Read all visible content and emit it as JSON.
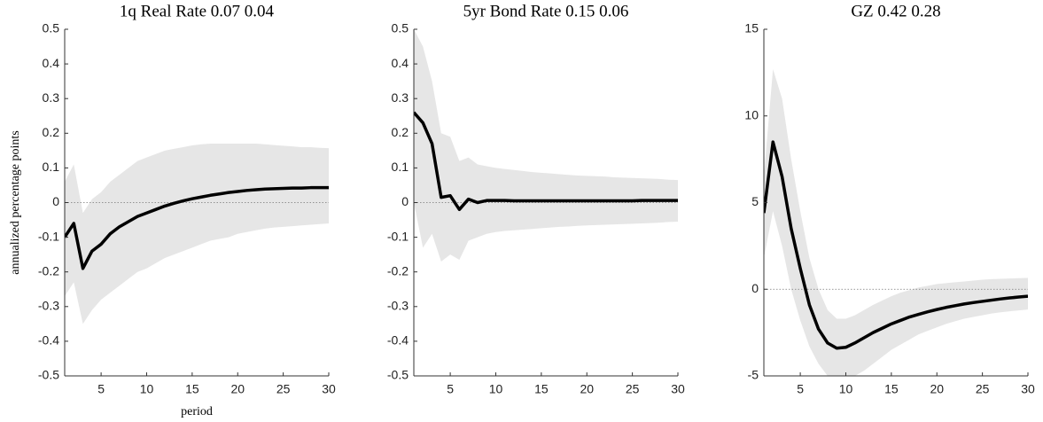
{
  "chart_data": [
    {
      "type": "line",
      "title": "1q Real Rate 0.07 0.04",
      "ylabel": "annualized percentage points",
      "xlabel": "period",
      "x": [
        1,
        2,
        3,
        4,
        5,
        6,
        7,
        8,
        9,
        10,
        11,
        12,
        13,
        14,
        15,
        16,
        17,
        18,
        19,
        20,
        21,
        22,
        23,
        24,
        25,
        26,
        27,
        28,
        29,
        30
      ],
      "values": [
        -0.1,
        -0.06,
        -0.19,
        -0.14,
        -0.12,
        -0.09,
        -0.07,
        -0.055,
        -0.04,
        -0.03,
        -0.02,
        -0.01,
        -0.002,
        0.005,
        0.011,
        0.016,
        0.021,
        0.025,
        0.029,
        0.032,
        0.035,
        0.037,
        0.039,
        0.04,
        0.041,
        0.042,
        0.042,
        0.043,
        0.043,
        0.043
      ],
      "upper": [
        0.06,
        0.11,
        -0.03,
        0.01,
        0.03,
        0.06,
        0.08,
        0.1,
        0.12,
        0.13,
        0.14,
        0.15,
        0.155,
        0.16,
        0.165,
        0.168,
        0.17,
        0.17,
        0.17,
        0.17,
        0.17,
        0.17,
        0.168,
        0.166,
        0.164,
        0.162,
        0.16,
        0.16,
        0.158,
        0.157
      ],
      "lower": [
        -0.27,
        -0.23,
        -0.35,
        -0.31,
        -0.28,
        -0.26,
        -0.24,
        -0.22,
        -0.2,
        -0.19,
        -0.175,
        -0.16,
        -0.15,
        -0.14,
        -0.13,
        -0.12,
        -0.11,
        -0.105,
        -0.1,
        -0.09,
        -0.085,
        -0.08,
        -0.075,
        -0.072,
        -0.07,
        -0.068,
        -0.066,
        -0.064,
        -0.062,
        -0.06
      ],
      "color": "#000000",
      "band_color": "#e6e6e6",
      "hline": 0,
      "xlim": [
        1,
        30
      ],
      "ylim": [
        -0.5,
        0.5
      ],
      "xticks": [
        5,
        10,
        15,
        20,
        25,
        30
      ],
      "yticks": [
        -0.5,
        -0.4,
        -0.3,
        -0.2,
        -0.1,
        0,
        0.1,
        0.2,
        0.3,
        0.4,
        0.5
      ]
    },
    {
      "type": "line",
      "title": "5yr Bond Rate 0.15 0.06",
      "x": [
        1,
        2,
        3,
        4,
        5,
        6,
        7,
        8,
        9,
        10,
        11,
        12,
        13,
        14,
        15,
        16,
        17,
        18,
        19,
        20,
        21,
        22,
        23,
        24,
        25,
        26,
        27,
        28,
        29,
        30
      ],
      "values": [
        0.26,
        0.23,
        0.17,
        0.015,
        0.02,
        -0.02,
        0.01,
        0.0,
        0.006,
        0.006,
        0.006,
        0.005,
        0.005,
        0.005,
        0.005,
        0.005,
        0.005,
        0.005,
        0.005,
        0.005,
        0.005,
        0.005,
        0.005,
        0.005,
        0.005,
        0.006,
        0.006,
        0.006,
        0.006,
        0.006
      ],
      "upper": [
        0.5,
        0.45,
        0.35,
        0.2,
        0.19,
        0.12,
        0.13,
        0.11,
        0.105,
        0.1,
        0.097,
        0.094,
        0.091,
        0.088,
        0.086,
        0.084,
        0.082,
        0.08,
        0.078,
        0.077,
        0.076,
        0.075,
        0.073,
        0.072,
        0.071,
        0.07,
        0.069,
        0.068,
        0.066,
        0.065
      ],
      "lower": [
        0.0,
        -0.13,
        -0.09,
        -0.17,
        -0.15,
        -0.165,
        -0.11,
        -0.1,
        -0.09,
        -0.085,
        -0.082,
        -0.08,
        -0.078,
        -0.076,
        -0.074,
        -0.072,
        -0.07,
        -0.069,
        -0.067,
        -0.066,
        -0.065,
        -0.064,
        -0.063,
        -0.062,
        -0.061,
        -0.06,
        -0.059,
        -0.058,
        -0.056,
        -0.055
      ],
      "color": "#000000",
      "band_color": "#e6e6e6",
      "hline": 0,
      "xlim": [
        1,
        30
      ],
      "ylim": [
        -0.5,
        0.5
      ],
      "xticks": [
        5,
        10,
        15,
        20,
        25,
        30
      ],
      "yticks": [
        -0.5,
        -0.4,
        -0.3,
        -0.2,
        -0.1,
        0,
        0.1,
        0.2,
        0.3,
        0.4,
        0.5
      ]
    },
    {
      "type": "line",
      "title": "GZ 0.42 0.28",
      "x": [
        1,
        2,
        3,
        4,
        5,
        6,
        7,
        8,
        9,
        10,
        11,
        12,
        13,
        14,
        15,
        16,
        17,
        18,
        19,
        20,
        21,
        22,
        23,
        24,
        25,
        26,
        27,
        28,
        29,
        30
      ],
      "values": [
        4.4,
        8.5,
        6.5,
        3.5,
        1.2,
        -0.9,
        -2.3,
        -3.1,
        -3.4,
        -3.35,
        -3.1,
        -2.8,
        -2.5,
        -2.25,
        -2.0,
        -1.8,
        -1.6,
        -1.45,
        -1.3,
        -1.17,
        -1.05,
        -0.95,
        -0.85,
        -0.77,
        -0.7,
        -0.63,
        -0.56,
        -0.5,
        -0.45,
        -0.4
      ],
      "upper": [
        6.5,
        12.7,
        11,
        7.5,
        4.5,
        1.8,
        0,
        -1.2,
        -1.7,
        -1.7,
        -1.5,
        -1.2,
        -0.9,
        -0.65,
        -0.4,
        -0.2,
        -0.05,
        0.1,
        0.2,
        0.3,
        0.35,
        0.4,
        0.45,
        0.5,
        0.55,
        0.58,
        0.6,
        0.62,
        0.64,
        0.65
      ],
      "lower": [
        1.8,
        4.5,
        2.5,
        0,
        -1.8,
        -3.3,
        -4.3,
        -5,
        -5.3,
        -5.2,
        -5,
        -4.7,
        -4.3,
        -3.9,
        -3.5,
        -3.2,
        -2.9,
        -2.6,
        -2.4,
        -2.2,
        -2.0,
        -1.85,
        -1.7,
        -1.6,
        -1.5,
        -1.4,
        -1.33,
        -1.27,
        -1.22,
        -1.17
      ],
      "color": "#000000",
      "band_color": "#e6e6e6",
      "hline": 0,
      "xlim": [
        1,
        30
      ],
      "ylim": [
        -5,
        15
      ],
      "xticks": [
        5,
        10,
        15,
        20,
        25,
        30
      ],
      "yticks": [
        -5,
        0,
        5,
        10,
        15
      ]
    }
  ]
}
